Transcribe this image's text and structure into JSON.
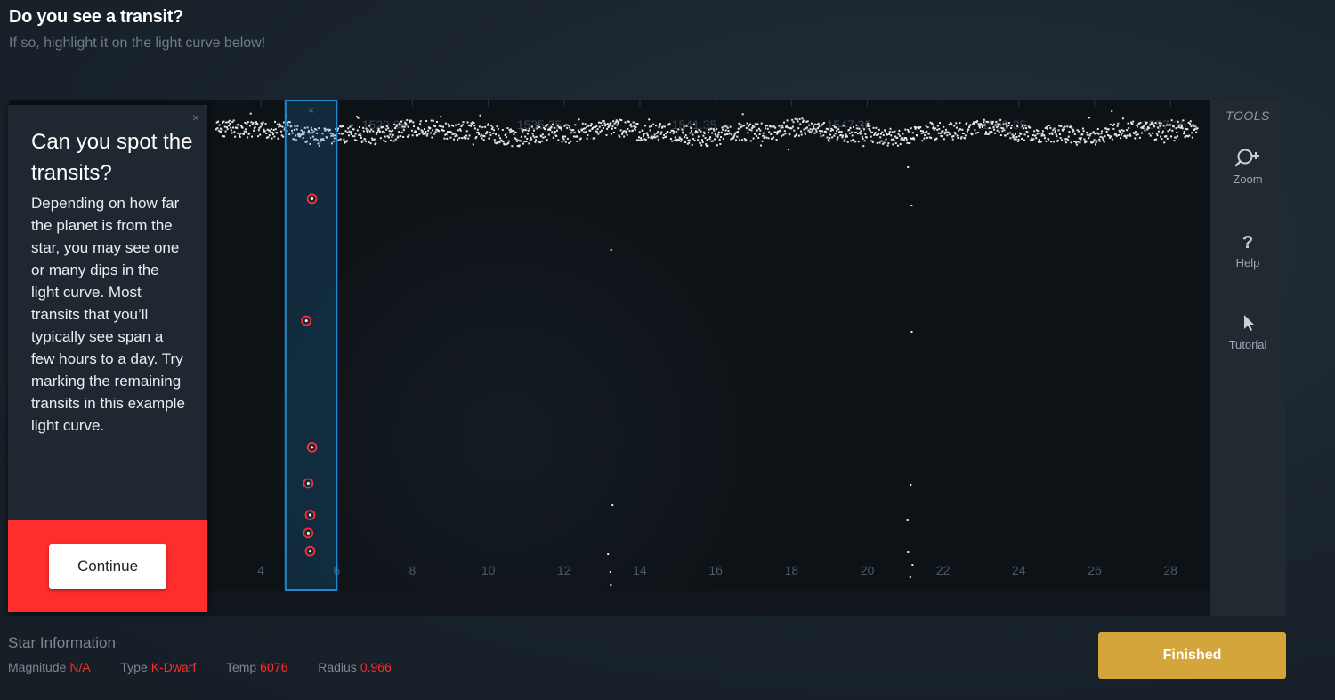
{
  "header": {
    "title": "Do you see a transit?",
    "subtitle": "If so, highlight it on the light curve below!"
  },
  "tools": {
    "title": "TOOLS",
    "items": [
      {
        "label": "Zoom",
        "icon": "zoom-in-icon"
      },
      {
        "label": "Help",
        "icon": "question-icon"
      },
      {
        "label": "Tutorial",
        "icon": "cursor-icon"
      }
    ]
  },
  "tutorial": {
    "close": "×",
    "title": "Can you spot the transits?",
    "body": "Depending on how far the planet is from the star, you may see one or many dips in the light curve. Most transits that you’ll typically see span a few hours to a day. Try marking the remaining transits in this example light curve.",
    "continue_label": "Continue"
  },
  "star_info": {
    "title": "Star Information",
    "fields": [
      {
        "label": "Magnitude",
        "value": "N/A"
      },
      {
        "label": "Type",
        "value": "K-Dwarf"
      },
      {
        "label": "Temp",
        "value": "6076"
      },
      {
        "label": "Radius",
        "value": "0.966"
      }
    ]
  },
  "finished_label": "Finished",
  "colors": {
    "accent_red": "#ff2e2e",
    "finished_gold": "#d4a53b",
    "selection_blue": "#1e88d0",
    "value_red": "#ff2a2a"
  },
  "chart_data": {
    "type": "scatter",
    "x_ticks_bottom": [
      "4",
      "6",
      "8",
      "10",
      "12",
      "14",
      "16",
      "18",
      "20",
      "22",
      "24",
      "26",
      "28"
    ],
    "x_ticks_top": [
      "1529.35",
      "1535.35",
      "1541.35",
      "1547.35",
      "1553.35",
      "1557.35"
    ],
    "xlim": [
      2.8,
      28.7
    ],
    "baseline_band": {
      "x_start": 2.8,
      "x_end": 28.7
    },
    "transits": [
      {
        "x": 13.2,
        "label": "transit-1"
      },
      {
        "x": 21.1,
        "label": "transit-2"
      }
    ],
    "selection": {
      "x_start": 4.65,
      "x_end": 6.0
    },
    "marked_points": [
      {
        "x": 5.35,
        "y": 0.82
      },
      {
        "x": 5.2,
        "y": 0.55
      },
      {
        "x": 5.35,
        "y": 0.27
      },
      {
        "x": 5.25,
        "y": 0.19
      },
      {
        "x": 5.3,
        "y": 0.12
      },
      {
        "x": 5.25,
        "y": 0.08
      },
      {
        "x": 5.3,
        "y": 0.04
      }
    ]
  }
}
